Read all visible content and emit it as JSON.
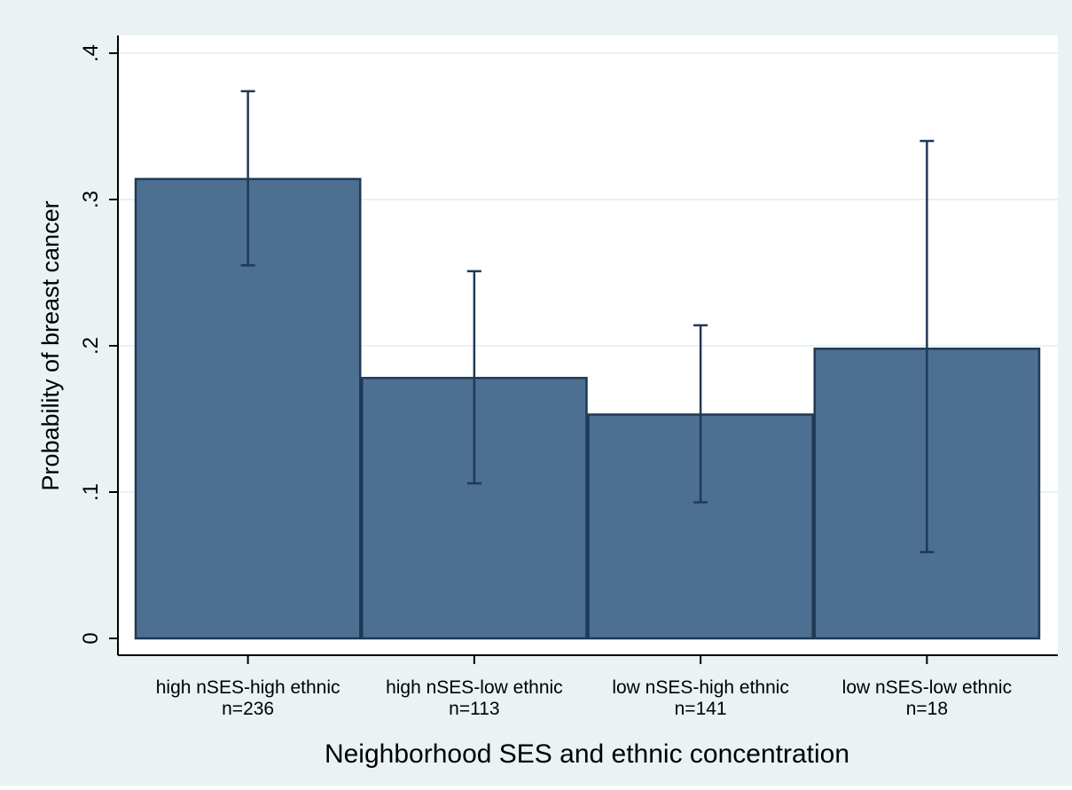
{
  "chart_data": {
    "type": "bar",
    "title": "",
    "xlabel": "Neighborhood SES and ethnic concentration",
    "ylabel": "Probability of breast cancer",
    "ylim": [
      0,
      0.4
    ],
    "yticks": [
      0,
      0.1,
      0.2,
      0.3,
      0.4
    ],
    "ytick_labels": [
      "0",
      ".1",
      ".2",
      ".3",
      ".4"
    ],
    "grid": true,
    "categories": [
      {
        "label": "high nSES-high ethnic",
        "n": "n=236"
      },
      {
        "label": "high nSES-low ethnic",
        "n": "n=113"
      },
      {
        "label": "low nSES-high ethnic",
        "n": "n=141"
      },
      {
        "label": "low nSES-low ethnic",
        "n": "n=18"
      }
    ],
    "values": [
      0.314,
      0.178,
      0.153,
      0.198
    ],
    "error_low": [
      0.255,
      0.106,
      0.093,
      0.059
    ],
    "error_high": [
      0.374,
      0.251,
      0.214,
      0.34
    ],
    "colors": {
      "outer_background": "#eaf2f3",
      "plot_background": "#ffffff",
      "bar_fill": "#4d6f92",
      "bar_stroke": "#1f3a56",
      "error_bar": "#1f3a56",
      "grid": "#eaf2f3",
      "axis": "#000000"
    }
  }
}
